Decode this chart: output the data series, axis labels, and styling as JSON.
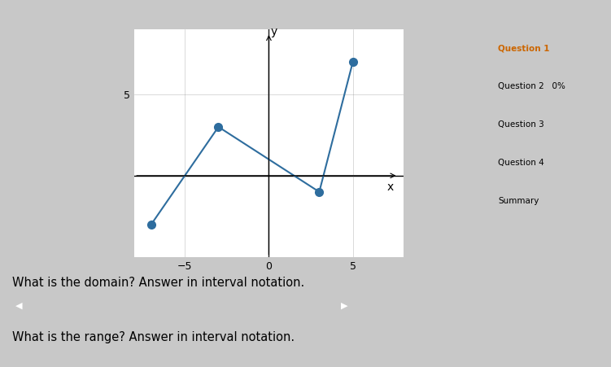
{
  "x_label": "x",
  "y_label": "y",
  "xlim": [
    -8,
    8
  ],
  "ylim": [
    -5,
    9
  ],
  "xticks": [
    -5,
    0,
    5
  ],
  "yticks": [
    5
  ],
  "points_x": [
    -7,
    -3,
    3,
    5
  ],
  "points_y": [
    -3,
    3,
    -1,
    7
  ],
  "line_color": "#2e6d9e",
  "marker_color": "#2e6d9e",
  "background_color": "#c8c8c8",
  "plot_bg_color": "#ffffff",
  "domain_question": "What is the domain? Answer in interval notation. ",
  "range_question": "What is the range? Answer in interval notation.",
  "point_styles": [
    "o",
    "o",
    "o",
    "o"
  ],
  "sidebar_items": [
    "Question 1",
    "Question 2   0%",
    "Question 3",
    "Question 4",
    "Summary"
  ],
  "sidebar_bg": "#f5f5f5",
  "sidebar_highlight": "#ffdd99",
  "answer_bar_color": "#b0b0b0",
  "answer_bar2_color": "#d8d8d8"
}
